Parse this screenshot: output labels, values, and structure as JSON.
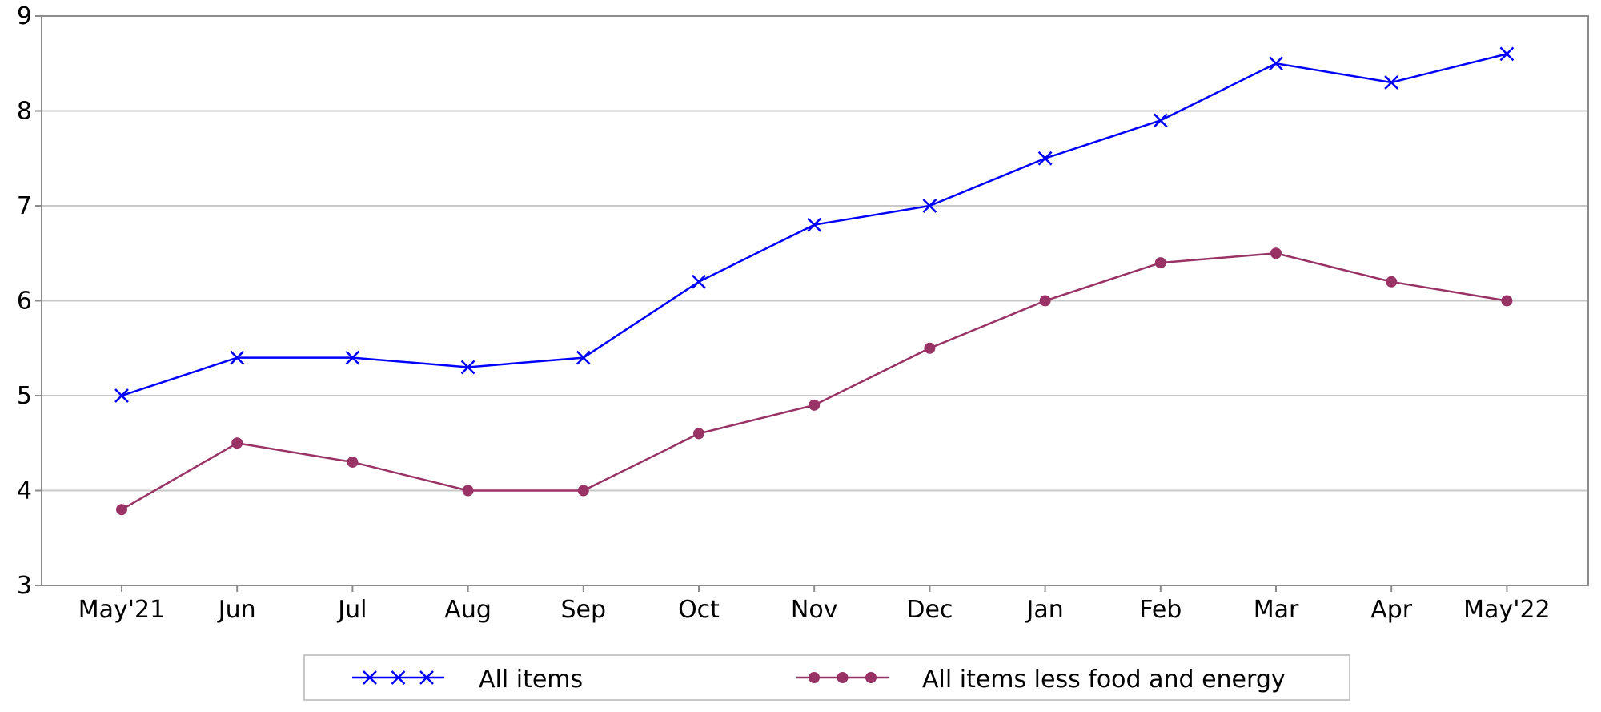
{
  "chart_data": {
    "type": "line",
    "title": "",
    "xlabel": "",
    "ylabel": "",
    "categories": [
      "May'21",
      "Jun",
      "Jul",
      "Aug",
      "Sep",
      "Oct",
      "Nov",
      "Dec",
      "Jan",
      "Feb",
      "Mar",
      "Apr",
      "May'22"
    ],
    "ylim": [
      3,
      9
    ],
    "yticks": [
      3,
      4,
      5,
      6,
      7,
      8,
      9
    ],
    "grid": "horizontal",
    "legend_position": "bottom",
    "series": [
      {
        "name": "All items",
        "marker": "x",
        "color": "#0000ff",
        "values": [
          5.0,
          5.4,
          5.4,
          5.3,
          5.4,
          6.2,
          6.8,
          7.0,
          7.5,
          7.9,
          8.5,
          8.3,
          8.6
        ]
      },
      {
        "name": "All items less food and energy",
        "marker": "circle",
        "color": "#993366",
        "values": [
          3.8,
          4.5,
          4.3,
          4.0,
          4.0,
          4.6,
          4.9,
          5.5,
          6.0,
          6.4,
          6.5,
          6.2,
          6.0
        ]
      }
    ]
  }
}
